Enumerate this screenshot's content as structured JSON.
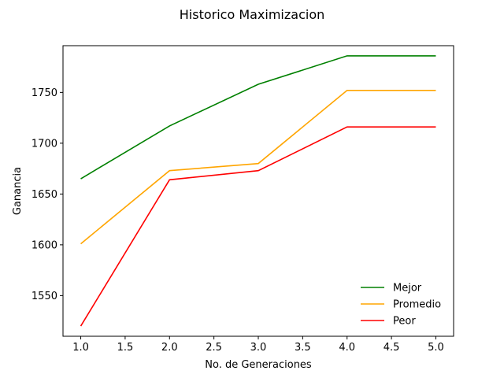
{
  "chart_data": {
    "type": "line",
    "title": "Historico Maximizacion",
    "xlabel": "No. de Generaciones",
    "ylabel": "Ganancia",
    "x": [
      1.0,
      2.0,
      3.0,
      4.0,
      5.0
    ],
    "xlim": [
      0.8,
      5.2
    ],
    "ylim": [
      1510,
      1796
    ],
    "xticks": [
      "1.0",
      "1.5",
      "2.0",
      "2.5",
      "3.0",
      "3.5",
      "4.0",
      "4.5",
      "5.0"
    ],
    "yticks": [
      "1550",
      "1600",
      "1650",
      "1700",
      "1750"
    ],
    "grid": false,
    "legend_position": "lower-right",
    "series": [
      {
        "name": "Mejor",
        "color": "#008000",
        "values": [
          1665,
          1717,
          1758,
          1786,
          1786
        ]
      },
      {
        "name": "Promedio",
        "color": "#ffa500",
        "values": [
          1601,
          1673,
          1680,
          1752,
          1752
        ]
      },
      {
        "name": "Peor",
        "color": "#ff0000",
        "values": [
          1520,
          1664,
          1673,
          1716,
          1716
        ]
      }
    ]
  }
}
